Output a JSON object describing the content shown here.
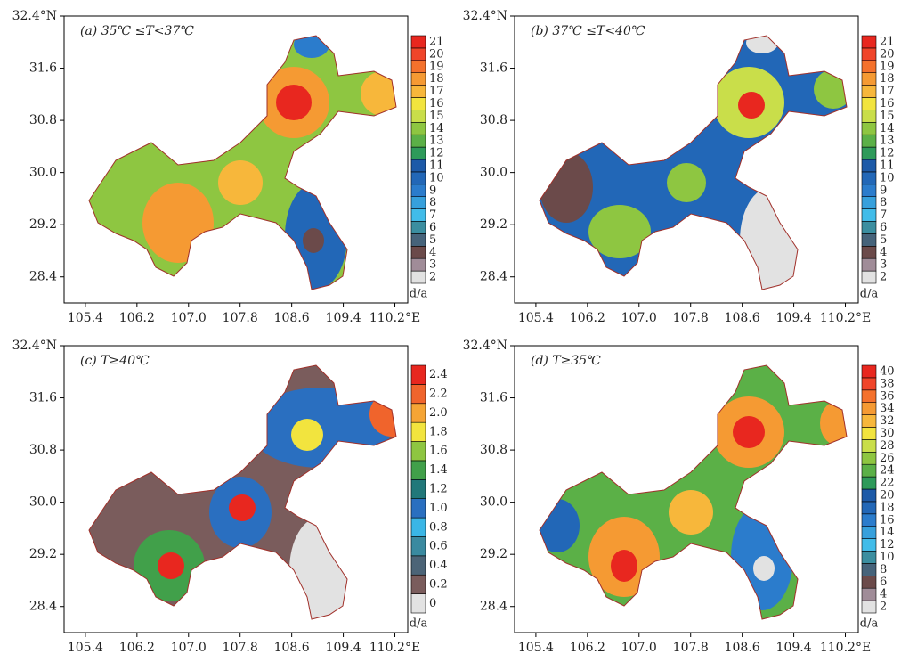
{
  "axes": {
    "xlim": [
      105.07,
      110.4
    ],
    "ylim": [
      28.0,
      32.4
    ],
    "xticks": [
      105.4,
      106.2,
      {
        "value": 107.0,
        "label": "107.0"
      },
      107.8,
      108.6,
      109.4,
      {
        "value": 110.2,
        "label": "110.2°E"
      }
    ],
    "yticks": [
      28.4,
      29.2,
      {
        "value": 30.0,
        "label": "30.0"
      },
      30.8,
      31.6,
      {
        "value": 32.4,
        "label": "32.4°N"
      }
    ]
  },
  "panels": [
    {
      "label": "(a) 35℃ ≤T<37℃",
      "unit": "d/a",
      "levels": [
        2,
        3,
        4,
        5,
        6,
        7,
        8,
        9,
        10,
        11,
        12,
        13,
        14,
        15,
        16,
        17,
        18,
        19,
        20,
        21
      ],
      "colors": [
        "#e2e2e2",
        "#a08c98",
        "#6b4a4a",
        "#46637a",
        "#3b8ea0",
        "#41bce9",
        "#36a0dc",
        "#2b7ccc",
        "#2267b7",
        "#1d5aa8",
        "#2e9a5a",
        "#5bb047",
        "#8ec641",
        "#c9de4a",
        "#f2e43e",
        "#f7b73b",
        "#f59a33",
        "#f4712c",
        "#f0452a",
        "#e8271f"
      ]
    },
    {
      "label": "(b) 37℃ ≤T<40℃",
      "unit": "d/a",
      "levels": [
        2,
        3,
        4,
        5,
        6,
        7,
        8,
        9,
        10,
        11,
        12,
        13,
        14,
        15,
        16,
        17,
        18,
        19,
        20,
        21
      ],
      "colors": [
        "#e2e2e2",
        "#a08c98",
        "#6b4a4a",
        "#46637a",
        "#3b8ea0",
        "#41bce9",
        "#36a0dc",
        "#2b7ccc",
        "#2267b7",
        "#1d5aa8",
        "#2e9a5a",
        "#5bb047",
        "#8ec641",
        "#c9de4a",
        "#f2e43e",
        "#f7b73b",
        "#f59a33",
        "#f4712c",
        "#f0452a",
        "#e8271f"
      ]
    },
    {
      "label": "(c) T≥40℃",
      "unit": "d/a",
      "levels": [
        0,
        0.2,
        0.4,
        0.6,
        0.8,
        {
          "value": 1.0,
          "label": "1.0"
        },
        1.2,
        1.4,
        1.6,
        1.8,
        {
          "value": 2.0,
          "label": "2.0"
        },
        2.2,
        2.4
      ],
      "colors": [
        "#e2e2e2",
        "#7a5c5c",
        "#4c6477",
        "#3a8aa0",
        "#3ab6e6",
        "#2a6fc0",
        "#21787a",
        "#41a04a",
        "#8ec641",
        "#f2e43e",
        "#f5a535",
        "#f0642c",
        "#e8271f"
      ]
    },
    {
      "label": "(d) T≥35℃",
      "unit": "d/a",
      "levels": [
        2,
        4,
        6,
        8,
        10,
        12,
        14,
        16,
        18,
        20,
        22,
        24,
        26,
        28,
        30,
        32,
        34,
        36,
        38,
        40
      ],
      "colors": [
        "#e2e2e2",
        "#a08c98",
        "#6b4a4a",
        "#46637a",
        "#3b8ea0",
        "#41bce9",
        "#36a0dc",
        "#2b7ccc",
        "#2267b7",
        "#1d5aa8",
        "#2e9a5a",
        "#5bb047",
        "#8ec641",
        "#c9de4a",
        "#f2e43e",
        "#f7b73b",
        "#f59a33",
        "#f4712c",
        "#f0452a",
        "#e8271f"
      ]
    }
  ]
}
